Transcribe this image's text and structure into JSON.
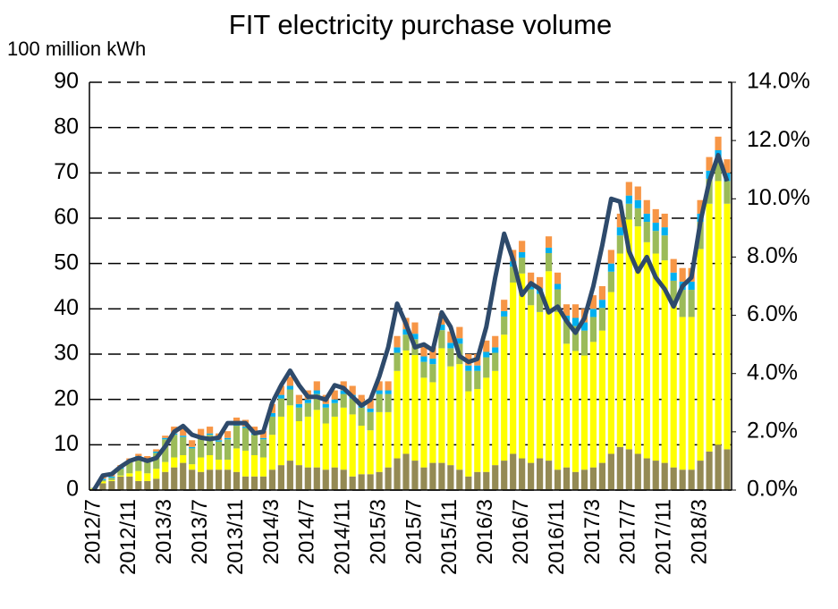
{
  "chart_data": {
    "type": "bar",
    "title": "FIT electricity purchase volume",
    "y_label": "100 million kWh",
    "categories": [
      "2012/7",
      null,
      null,
      null,
      "2012/11",
      null,
      null,
      null,
      "2013/3",
      null,
      null,
      null,
      "2013/7",
      null,
      null,
      null,
      "2013/11",
      null,
      null,
      null,
      "2014/3",
      null,
      null,
      null,
      "2014/7",
      null,
      null,
      null,
      "2014/11",
      null,
      null,
      null,
      "2015/3",
      null,
      null,
      null,
      "2015/7",
      null,
      null,
      null,
      "2015/11",
      null,
      null,
      null,
      "2016/3",
      null,
      null,
      null,
      "2016/7",
      null,
      null,
      null,
      "2016/11",
      null,
      null,
      null,
      "2017/3",
      null,
      null,
      null,
      "2017/7",
      null,
      null,
      null,
      "2017/11",
      null,
      null,
      null,
      "2018/3",
      null,
      null,
      null
    ],
    "series": [
      {
        "type": "bar",
        "color": "#948a54",
        "values": [
          0.2,
          1.5,
          2,
          3,
          3,
          2,
          2,
          2.5,
          4,
          5,
          6,
          4.5,
          4,
          4.5,
          4.5,
          4.5,
          4,
          3,
          3,
          3,
          4.5,
          5.5,
          6.5,
          5.5,
          5,
          5,
          4.5,
          5,
          4.5,
          3,
          3.5,
          3.5,
          4,
          5,
          7,
          8,
          6.5,
          5,
          6,
          6,
          5.5,
          4.5,
          3,
          4,
          4,
          5.5,
          6.5,
          8,
          7,
          6,
          7,
          6.5,
          4.5,
          5,
          4,
          4.5,
          5,
          6,
          8,
          9.5,
          9,
          8,
          7,
          6.5,
          6,
          5,
          4.5,
          4.5,
          6.5,
          8.5,
          10,
          9
        ]
      },
      {
        "type": "bar",
        "color": "#ffff00",
        "values": [
          0.1,
          0.4,
          0.2,
          0.2,
          0.7,
          2.2,
          1.7,
          2.2,
          2.2,
          2.2,
          1.7,
          1.2,
          3.2,
          3.2,
          2.2,
          2.2,
          5.2,
          5.7,
          4.7,
          4.2,
          7.7,
          10.7,
          12.2,
          9.7,
          11.2,
          12.7,
          10.2,
          11.2,
          13.7,
          13.7,
          10.7,
          9.7,
          13.2,
          12.2,
          19.3,
          22.8,
          23.3,
          19.8,
          17.8,
          25.3,
          21.8,
          23.3,
          18.8,
          18.3,
          20.8,
          20.8,
          27.8,
          37.8,
          40.8,
          34.8,
          32.3,
          41.8,
          34.8,
          27.3,
          26.7,
          25.2,
          27.7,
          29.2,
          35.7,
          42.7,
          50.7,
          50.2,
          47.7,
          45.7,
          44.7,
          35.7,
          33.7,
          33.7,
          46.7,
          54.7,
          58.2,
          54.2
        ]
      },
      {
        "type": "bar",
        "color": "#9bbb59",
        "values": [
          0.2,
          0.3,
          0.5,
          1.5,
          2.5,
          3,
          3,
          3.5,
          5,
          5,
          4,
          3.5,
          4.5,
          4.5,
          4,
          4.5,
          5,
          5,
          4.5,
          4,
          4,
          4,
          3.5,
          3,
          3,
          3.5,
          3.5,
          3,
          3,
          3.5,
          4,
          4,
          4,
          4,
          4,
          3.5,
          3.5,
          3.5,
          4,
          4,
          4,
          4.5,
          4.5,
          4,
          4.5,
          4,
          4,
          3.5,
          3.5,
          3.5,
          4,
          4,
          5,
          5,
          5.5,
          5.5,
          5.5,
          5,
          4.5,
          4,
          3.5,
          4,
          4.5,
          5,
          5.5,
          5.5,
          6,
          6,
          6,
          5.5,
          5,
          5
        ]
      },
      {
        "type": "bar",
        "color": "#00b0f0",
        "values": [
          0,
          0.3,
          0.3,
          0.3,
          0.3,
          0.3,
          0.3,
          0.3,
          0.3,
          0.3,
          0.3,
          0.3,
          0.3,
          0.3,
          0.3,
          0.3,
          0.3,
          0.3,
          0.3,
          0.3,
          0.8,
          0.8,
          0.8,
          0.8,
          0.8,
          0.8,
          0.8,
          0.8,
          0.8,
          0.8,
          0.8,
          0.8,
          0.8,
          0.8,
          1.2,
          1.2,
          1.2,
          1.2,
          1.2,
          1.2,
          1.2,
          1.2,
          1.2,
          1.2,
          1.2,
          1.2,
          1.2,
          1.2,
          1.2,
          1.2,
          1.2,
          1.2,
          1.2,
          1.2,
          1.8,
          1.8,
          1.8,
          1.8,
          1.8,
          1.8,
          1.8,
          1.8,
          1.8,
          1.8,
          1.8,
          1.8,
          1.8,
          1.8,
          1.8,
          1.8,
          1.8,
          1.8
        ]
      },
      {
        "type": "bar",
        "color": "#f79646",
        "values": [
          0,
          0.5,
          0.5,
          0.5,
          0.5,
          0.5,
          0.5,
          0.5,
          0.5,
          1.5,
          1.5,
          1.5,
          1.5,
          1.5,
          1.5,
          1.5,
          1.5,
          1.5,
          1.5,
          1.5,
          2,
          2,
          2,
          2,
          2,
          2,
          2,
          2,
          2,
          2,
          2,
          2,
          2,
          2,
          2.5,
          2.5,
          2.5,
          2.5,
          2.5,
          2.5,
          2.5,
          2.5,
          2.5,
          2.5,
          2.5,
          2.5,
          2.5,
          2.5,
          2.5,
          2.5,
          2.5,
          2.5,
          2.5,
          2.5,
          3,
          3,
          3,
          3,
          3,
          3,
          3,
          3,
          3,
          3,
          3,
          3,
          3,
          3,
          3,
          3,
          3,
          3
        ]
      },
      {
        "type": "line",
        "axis": "y2",
        "color": "#2e4a6b",
        "values": [
          0,
          0.5,
          0.55,
          0.8,
          1.0,
          1.1,
          1.0,
          1.1,
          1.5,
          2.0,
          2.2,
          1.9,
          1.8,
          1.75,
          1.8,
          2.3,
          2.3,
          2.3,
          1.95,
          2.0,
          3.0,
          3.6,
          4.1,
          3.6,
          3.2,
          3.2,
          3.1,
          3.6,
          3.5,
          3.2,
          2.9,
          3.1,
          3.9,
          4.9,
          6.4,
          5.7,
          4.9,
          5.0,
          4.8,
          6.1,
          5.6,
          4.6,
          4.4,
          4.5,
          5.6,
          7.3,
          8.8,
          7.9,
          6.7,
          7.1,
          6.9,
          6.1,
          6.3,
          5.8,
          5.4,
          5.9,
          7.0,
          8.4,
          10.0,
          9.9,
          8.2,
          7.5,
          8.0,
          7.3,
          6.9,
          6.3,
          7.0,
          7.3,
          9.2,
          10.6,
          11.5,
          10.6
        ]
      }
    ],
    "ylim": [
      0,
      90
    ],
    "yticks": [
      0,
      10,
      20,
      30,
      40,
      50,
      60,
      70,
      80,
      90
    ],
    "y2lim": [
      0,
      14
    ],
    "y2ticks": [
      {
        "value": 0,
        "label": "0.0%"
      },
      {
        "value": 2,
        "label": "2.0%"
      },
      {
        "value": 4,
        "label": "4.0%"
      },
      {
        "value": 6,
        "label": "6.0%"
      },
      {
        "value": 8,
        "label": "8.0%"
      },
      {
        "value": 10,
        "label": "10.0%"
      },
      {
        "value": 12,
        "label": "12.0%"
      },
      {
        "value": 14,
        "label": "14.0%"
      }
    ],
    "grid": true
  }
}
